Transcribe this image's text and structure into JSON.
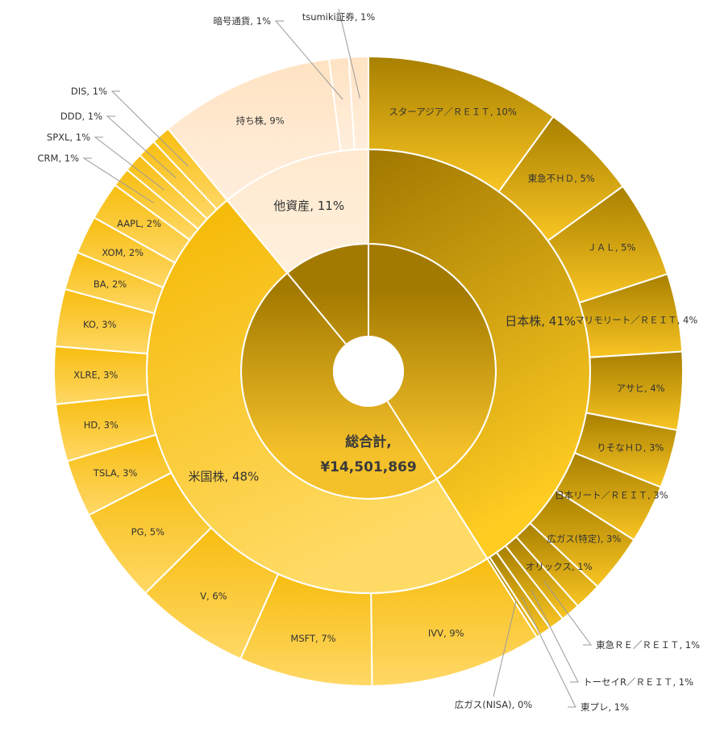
{
  "chart_data": {
    "type": "sunburst",
    "center": {
      "title": "総合計,",
      "value": "¥14,501,869"
    },
    "groups": [
      {
        "name": "日本株",
        "label": "日本株, 41%",
        "value": 41,
        "color": "#c9a012",
        "items": [
          {
            "label": "スターアジア／ＲＥＩＴ, 10%",
            "value": 10
          },
          {
            "label": "東急不ＨＤ, 5%",
            "value": 5
          },
          {
            "label": "ＪＡＬ, 5%",
            "value": 5
          },
          {
            "label": "マリモリート／ＲＥＩＴ, 4%",
            "value": 4
          },
          {
            "label": "アサヒ, 4%",
            "value": 4
          },
          {
            "label": "りそなＨＤ, 3%",
            "value": 3
          },
          {
            "label": "日本リート／ＲＥＩＴ, 3%",
            "value": 3
          },
          {
            "label": "広ガス(特定), 3%",
            "value": 3
          },
          {
            "label": "オリックス, 1%",
            "value": 1.4
          },
          {
            "label": "東急ＲＥ／ＲＥＩＴ, 1%",
            "value": 1.0
          },
          {
            "label": "トーセイR／ＲＥＩＴ, 1%",
            "value": 0.8
          },
          {
            "label": "東プレ, 1%",
            "value": 0.6
          },
          {
            "label": "広ガス(NISA), 0%",
            "value": 0.2
          }
        ]
      },
      {
        "name": "米国株",
        "label": "米国株, 48%",
        "value": 48,
        "color": "#f9c72a",
        "items": [
          {
            "label": "IVV, 9%",
            "value": 9
          },
          {
            "label": "MSFT, 7%",
            "value": 7
          },
          {
            "label": "V, 6%",
            "value": 6
          },
          {
            "label": "PG, 5%",
            "value": 5
          },
          {
            "label": "TSLA, 3%",
            "value": 3
          },
          {
            "label": "HD, 3%",
            "value": 3
          },
          {
            "label": "XLRE, 3%",
            "value": 3
          },
          {
            "label": "KO, 3%",
            "value": 3
          },
          {
            "label": "BA, 2%",
            "value": 2
          },
          {
            "label": "XOM, 2%",
            "value": 2
          },
          {
            "label": "AAPL, 2%",
            "value": 2
          },
          {
            "label": "CRM, 1%",
            "value": 1
          },
          {
            "label": "SPXL, 1%",
            "value": 1
          },
          {
            "label": "DDD, 1%",
            "value": 1
          },
          {
            "label": "DIS, 1%",
            "value": 1
          }
        ]
      },
      {
        "name": "他資産",
        "label": "他資産, 11%",
        "value": 11,
        "color": "#fde7c9",
        "items": [
          {
            "label": "持ち株, 9%",
            "value": 9
          },
          {
            "label": "暗号通貨, 1%",
            "value": 1
          },
          {
            "label": "tsumiki証券, 1%",
            "value": 1
          }
        ]
      }
    ]
  }
}
